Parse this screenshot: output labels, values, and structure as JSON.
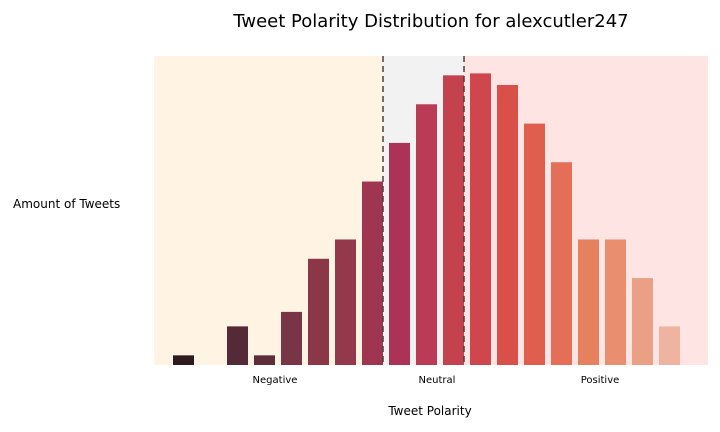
{
  "chart_data": {
    "type": "bar",
    "title": "Tweet Polarity Distribution for alexcutler247",
    "xlabel": "Tweet Polarity",
    "ylabel": "Amount of Tweets",
    "grid": false,
    "regions": [
      {
        "label": "Negative",
        "color": "#fff4e3"
      },
      {
        "label": "Neutral",
        "color": "#f2f2f2"
      },
      {
        "label": "Positive",
        "color": "#ffe4e4"
      }
    ],
    "threshold_line_color": "#4a3f3f",
    "values": [
      1,
      0,
      4,
      1,
      5.5,
      11,
      13,
      19,
      23,
      27,
      30,
      30.2,
      29,
      25,
      21,
      13,
      13,
      9,
      4
    ],
    "bar_colors": [
      "#2f1a1f",
      "#3e1f2a",
      "#532a36",
      "#5f2c3c",
      "#773546",
      "#8b3748",
      "#94384b",
      "#a03551",
      "#ad3258",
      "#b93b55",
      "#c4424e",
      "#cf464d",
      "#d9504b",
      "#df5e4e",
      "#e46e57",
      "#e6815f",
      "#e98f70",
      "#eaa085",
      "#efb4a0"
    ],
    "ylim": [
      0,
      32
    ]
  }
}
